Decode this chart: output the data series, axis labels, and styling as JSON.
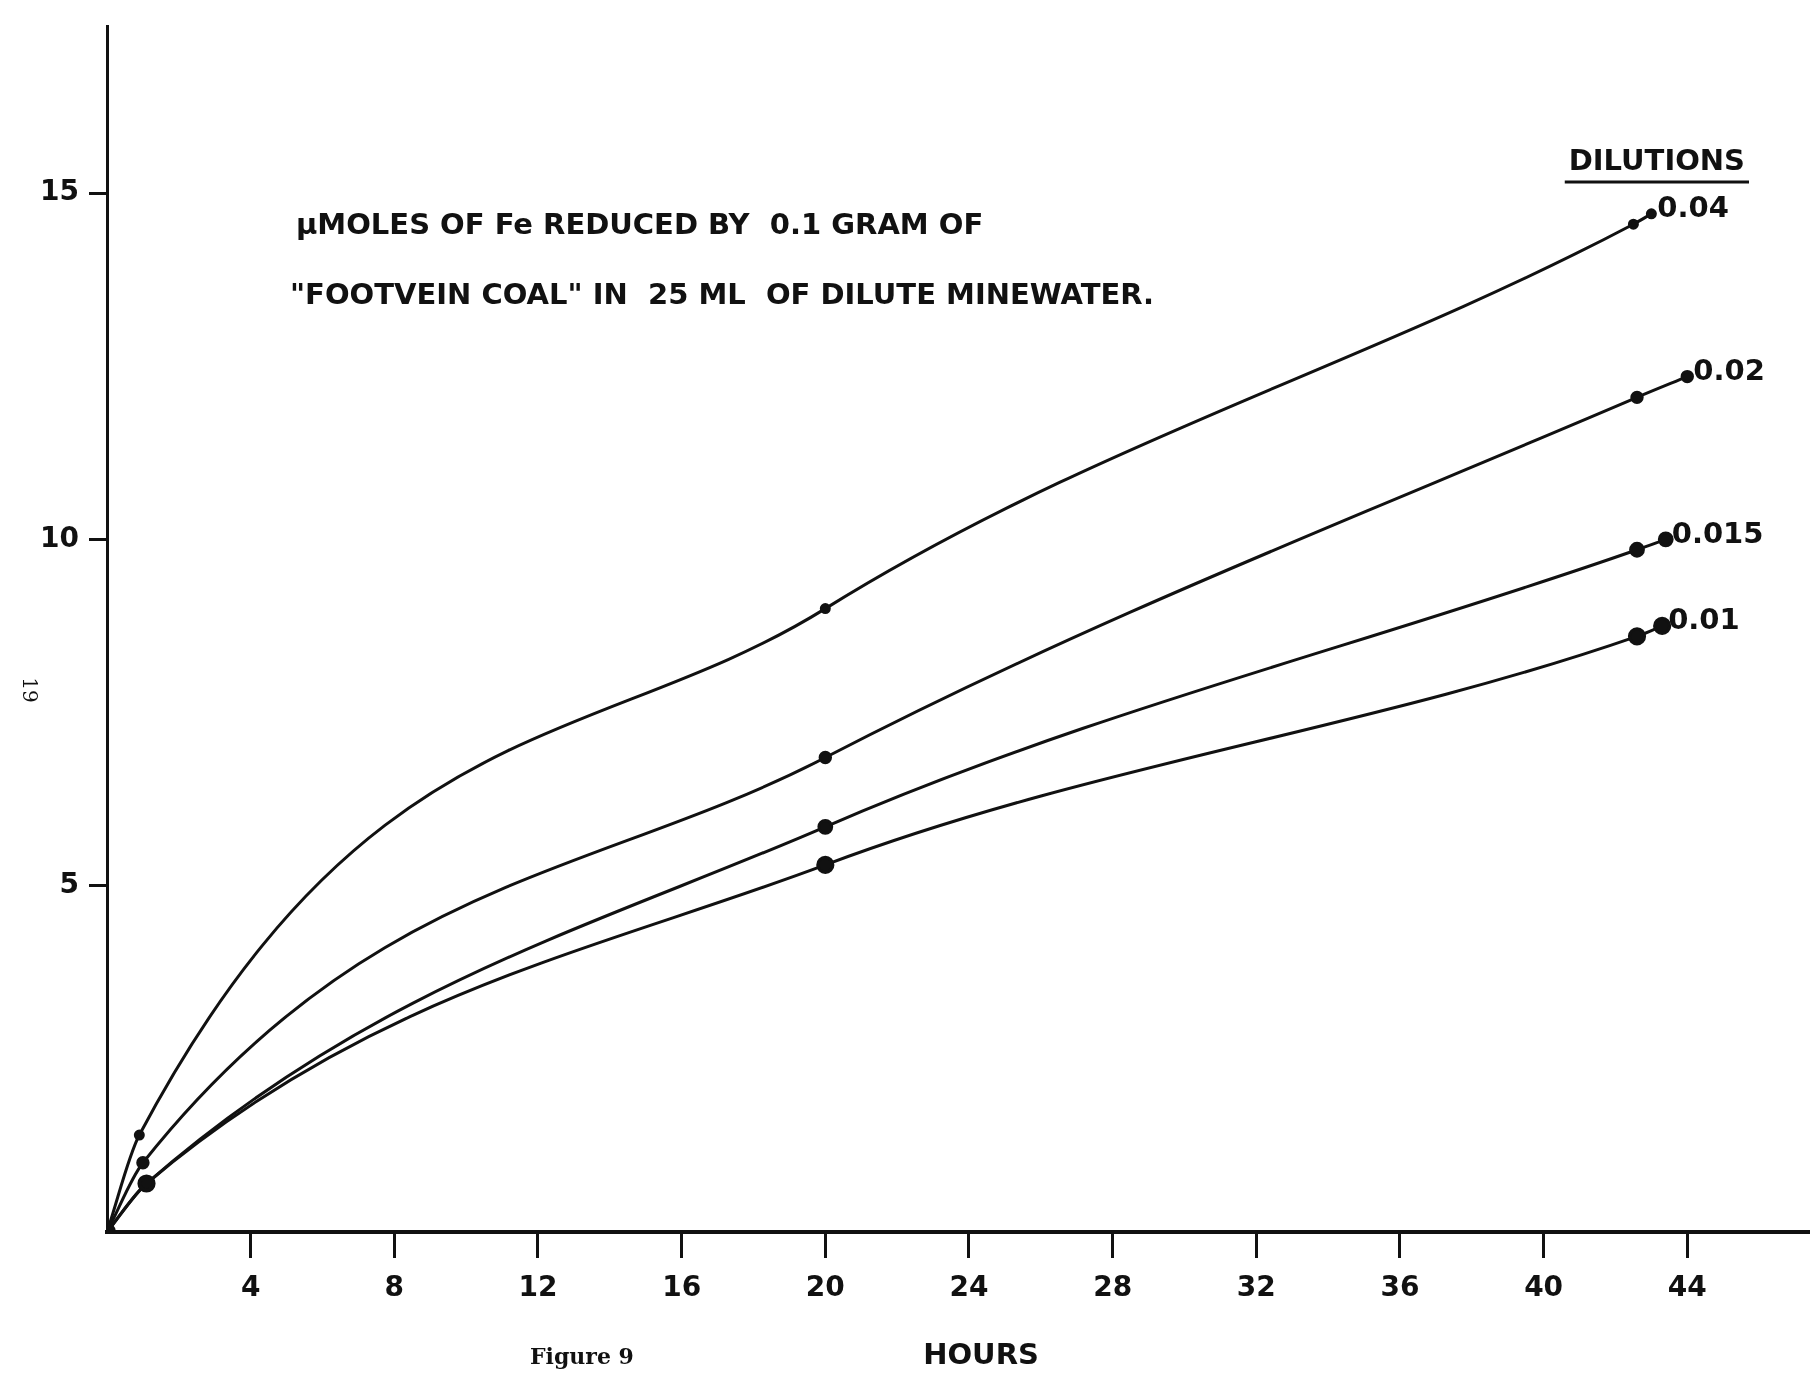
{
  "chart_data": {
    "type": "line",
    "title": "µMOLES OF Fe REDUCED BY  0.1 GRAM OF",
    "subtitle": "\"FOOTVEIN COAL\" IN  25 ML  OF DILUTE MINEWATER.",
    "xlabel": "HOURS",
    "legend_title": "DILUTIONS",
    "annotations": [
      "Figure 9",
      "19"
    ],
    "series": [
      {
        "name": "0.04",
        "color": "#111111",
        "x": [
          0,
          0.9,
          20,
          42.5,
          43
        ],
        "values": [
          0,
          1.4,
          9.0,
          14.55,
          14.7
        ]
      },
      {
        "name": "0.02",
        "color": "#111111",
        "x": [
          0,
          1.0,
          20,
          42.6,
          44
        ],
        "values": [
          0,
          1.0,
          6.85,
          12.05,
          12.35
        ]
      },
      {
        "name": "0.015",
        "color": "#111111",
        "x": [
          0,
          1.1,
          20,
          42.6,
          43.4
        ],
        "values": [
          0,
          0.7,
          5.85,
          9.85,
          10.0
        ]
      },
      {
        "name": "0.01",
        "color": "#111111",
        "x": [
          0,
          1.1,
          20,
          42.6,
          43.3
        ],
        "values": [
          0,
          0.7,
          5.3,
          8.6,
          8.75
        ]
      }
    ],
    "xlim": [
      0,
      47.4
    ],
    "ylim": [
      0,
      17.4
    ],
    "xticks": [
      4,
      8,
      12,
      16,
      20,
      24,
      28,
      32,
      36,
      40,
      44
    ],
    "yticks": [
      5,
      10,
      15
    ],
    "grid": false,
    "legend": false,
    "marker": "circle",
    "line_style": "solid"
  }
}
